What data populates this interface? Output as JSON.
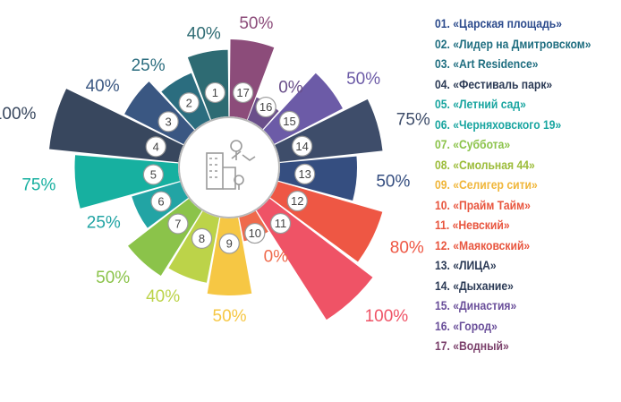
{
  "chart_data": {
    "type": "radial-bar",
    "title": "",
    "items": [
      {
        "num": "1",
        "name": "01. «Царская  площадь»",
        "pct_label": "40%",
        "value": 40,
        "color": "#2e6b73"
      },
      {
        "num": "2",
        "name": "02. «Лидер на Дмитровском»",
        "pct_label": "25%",
        "value": 25,
        "color": "#2b6d7f"
      },
      {
        "num": "3",
        "name": "03. «Art Residence»",
        "pct_label": "40%",
        "value": 40,
        "color": "#3a5782"
      },
      {
        "num": "4",
        "name": "04. «Фестиваль парк»",
        "pct_label": "100%",
        "value": 100,
        "color": "#38475e"
      },
      {
        "num": "5",
        "name": "05. «Летний сад»",
        "pct_label": "75%",
        "value": 75,
        "color": "#17b0a0"
      },
      {
        "num": "6",
        "name": "06. «Черняховского 19»",
        "pct_label": "25%",
        "value": 25,
        "color": "#22a4a4"
      },
      {
        "num": "7",
        "name": "07. «Суббота»",
        "pct_label": "50%",
        "value": 50,
        "color": "#8bc34a"
      },
      {
        "num": "8",
        "name": "08. «Смольная 44»",
        "pct_label": "40%",
        "value": 40,
        "color": "#bcd349"
      },
      {
        "num": "9",
        "name": "09. «Селигер сити»",
        "pct_label": "50%",
        "value": 50,
        "color": "#f6c744"
      },
      {
        "num": "10",
        "name": "10. «Прайм Тайм»",
        "pct_label": "0%",
        "value": 0,
        "color": "#ef6a4c"
      },
      {
        "num": "11",
        "name": "11. «Невский»",
        "pct_label": "100%",
        "value": 100,
        "color": "#ef5366"
      },
      {
        "num": "12",
        "name": "12. «Маяковский»",
        "pct_label": "80%",
        "value": 80,
        "color": "#ee5744"
      },
      {
        "num": "13",
        "name": "13. «ЛИЦА»",
        "pct_label": "50%",
        "value": 50,
        "color": "#354e80"
      },
      {
        "num": "14",
        "name": "14. «Дыхание»",
        "pct_label": "75%",
        "value": 75,
        "color": "#3e4d6a"
      },
      {
        "num": "15",
        "name": "15. «Династия»",
        "pct_label": "50%",
        "value": 50,
        "color": "#6c5ba7"
      },
      {
        "num": "16",
        "name": "16. «Город»",
        "pct_label": "0%",
        "value": 0,
        "color": "#6a4f8a"
      },
      {
        "num": "17",
        "name": "17. «Водный»",
        "pct_label": "50%",
        "value": 50,
        "color": "#8c4c7a"
      }
    ],
    "legend_colors": [
      "#2b4a8c",
      "#1f6e80",
      "#1f6e80",
      "#2b3a55",
      "#19a5a0",
      "#19a5a0",
      "#8bc34a",
      "#9cbc3a",
      "#f0b63a",
      "#e8553e",
      "#e8553e",
      "#e8553e",
      "#2b3a55",
      "#2b3a55",
      "#6a4f9a",
      "#6a4f9a",
      "#7a3f6a"
    ],
    "legend_placement": "right"
  }
}
